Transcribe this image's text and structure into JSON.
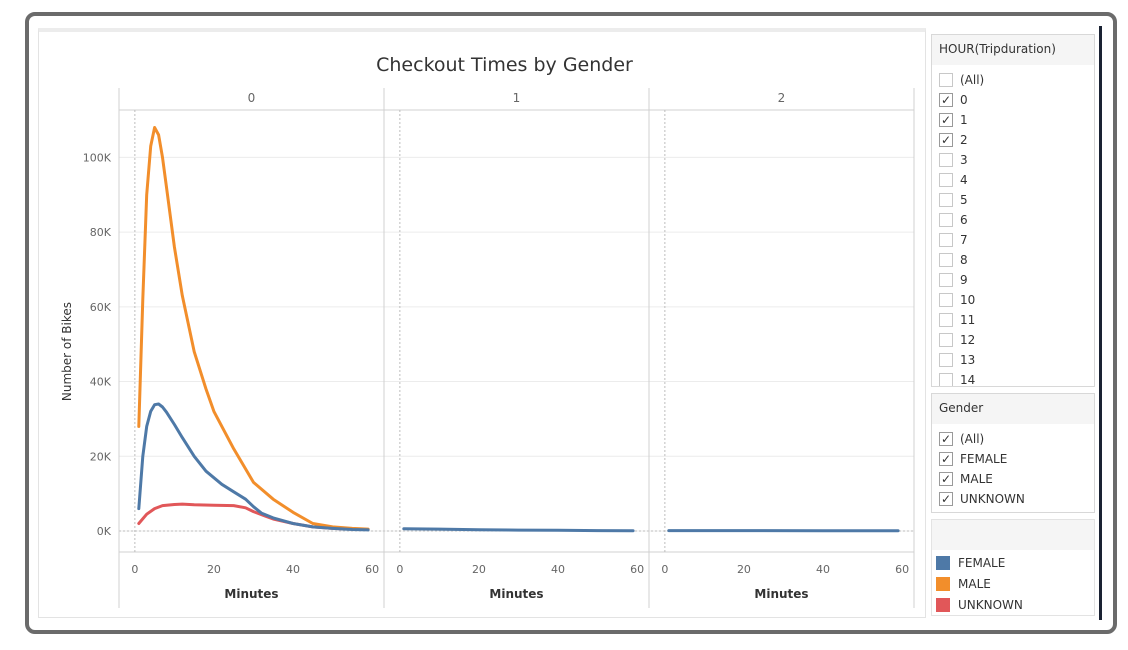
{
  "chart_data": {
    "type": "line",
    "title": "Checkout Times by Gender",
    "ylabel": "Number of Bikes",
    "xlabel": "Minutes",
    "panels": [
      "0",
      "1",
      "2"
    ],
    "ylim": [
      0,
      110000
    ],
    "yticks": [
      0,
      20000,
      40000,
      60000,
      80000,
      100000
    ],
    "ytick_labels": [
      "0K",
      "20K",
      "40K",
      "60K",
      "80K",
      "100K"
    ],
    "xlim": [
      -3,
      62
    ],
    "xticks": [
      0,
      20,
      40,
      60
    ],
    "xtick_labels": [
      "0",
      "20",
      "40",
      "60"
    ],
    "grid": true,
    "series": [
      {
        "name": "FEMALE",
        "color": "#4e79a7",
        "panels": [
          {
            "x": [
              1,
              2,
              3,
              4,
              5,
              6,
              7,
              8,
              10,
              12,
              15,
              18,
              22,
              25,
              28,
              30,
              32,
              35,
              40,
              45,
              50,
              55,
              59
            ],
            "y": [
              6000,
              20000,
              28000,
              32000,
              33800,
              34000,
              33200,
              31800,
              28500,
              25000,
              20000,
              16000,
              12500,
              10500,
              8500,
              6500,
              4800,
              3500,
              2000,
              1100,
              700,
              400,
              300
            ]
          },
          {
            "x": [
              1,
              10,
              20,
              30,
              40,
              50,
              59
            ],
            "y": [
              600,
              500,
              350,
              250,
              180,
              120,
              80
            ]
          },
          {
            "x": [
              1,
              20,
              40,
              59
            ],
            "y": [
              120,
              100,
              80,
              60
            ]
          }
        ]
      },
      {
        "name": "MALE",
        "color": "#f28e2b",
        "panels": [
          {
            "x": [
              1,
              2,
              3,
              4,
              5,
              6,
              7,
              8,
              10,
              12,
              15,
              18,
              20,
              25,
              30,
              35,
              40,
              45,
              50,
              55,
              59
            ],
            "y": [
              28000,
              62000,
              90000,
              103000,
              108000,
              106000,
              100000,
              92000,
              76000,
              63000,
              48000,
              38000,
              32000,
              22000,
              13000,
              8500,
              5000,
              2000,
              1100,
              700,
              500
            ]
          }
        ]
      },
      {
        "name": "UNKNOWN",
        "color": "#e15759",
        "panels": [
          {
            "x": [
              1,
              3,
              5,
              7,
              10,
              12,
              15,
              20,
              25,
              28,
              30,
              33,
              35,
              40,
              45,
              50,
              55,
              59
            ],
            "y": [
              2000,
              4500,
              6000,
              6800,
              7100,
              7200,
              7000,
              6900,
              6800,
              6200,
              5200,
              4000,
              3200,
              2000,
              1100,
              700,
              500,
              400
            ]
          }
        ]
      }
    ]
  },
  "filters": {
    "hour": {
      "title": "HOUR(Tripduration)",
      "items": [
        {
          "label": "(All)",
          "checked": false
        },
        {
          "label": "0",
          "checked": true
        },
        {
          "label": "1",
          "checked": true
        },
        {
          "label": "2",
          "checked": true
        },
        {
          "label": "3",
          "checked": false
        },
        {
          "label": "4",
          "checked": false
        },
        {
          "label": "5",
          "checked": false
        },
        {
          "label": "6",
          "checked": false
        },
        {
          "label": "7",
          "checked": false
        },
        {
          "label": "8",
          "checked": false
        },
        {
          "label": "9",
          "checked": false
        },
        {
          "label": "10",
          "checked": false
        },
        {
          "label": "11",
          "checked": false
        },
        {
          "label": "12",
          "checked": false
        },
        {
          "label": "13",
          "checked": false
        },
        {
          "label": "14",
          "checked": false
        }
      ]
    },
    "gender": {
      "title": "Gender",
      "items": [
        {
          "label": "(All)",
          "checked": true
        },
        {
          "label": "FEMALE",
          "checked": true
        },
        {
          "label": "MALE",
          "checked": true
        },
        {
          "label": "UNKNOWN",
          "checked": true
        }
      ]
    }
  },
  "legend": {
    "items": [
      {
        "label": "FEMALE",
        "color": "#4e79a7"
      },
      {
        "label": "MALE",
        "color": "#f28e2b"
      },
      {
        "label": "UNKNOWN",
        "color": "#e15759"
      }
    ]
  }
}
